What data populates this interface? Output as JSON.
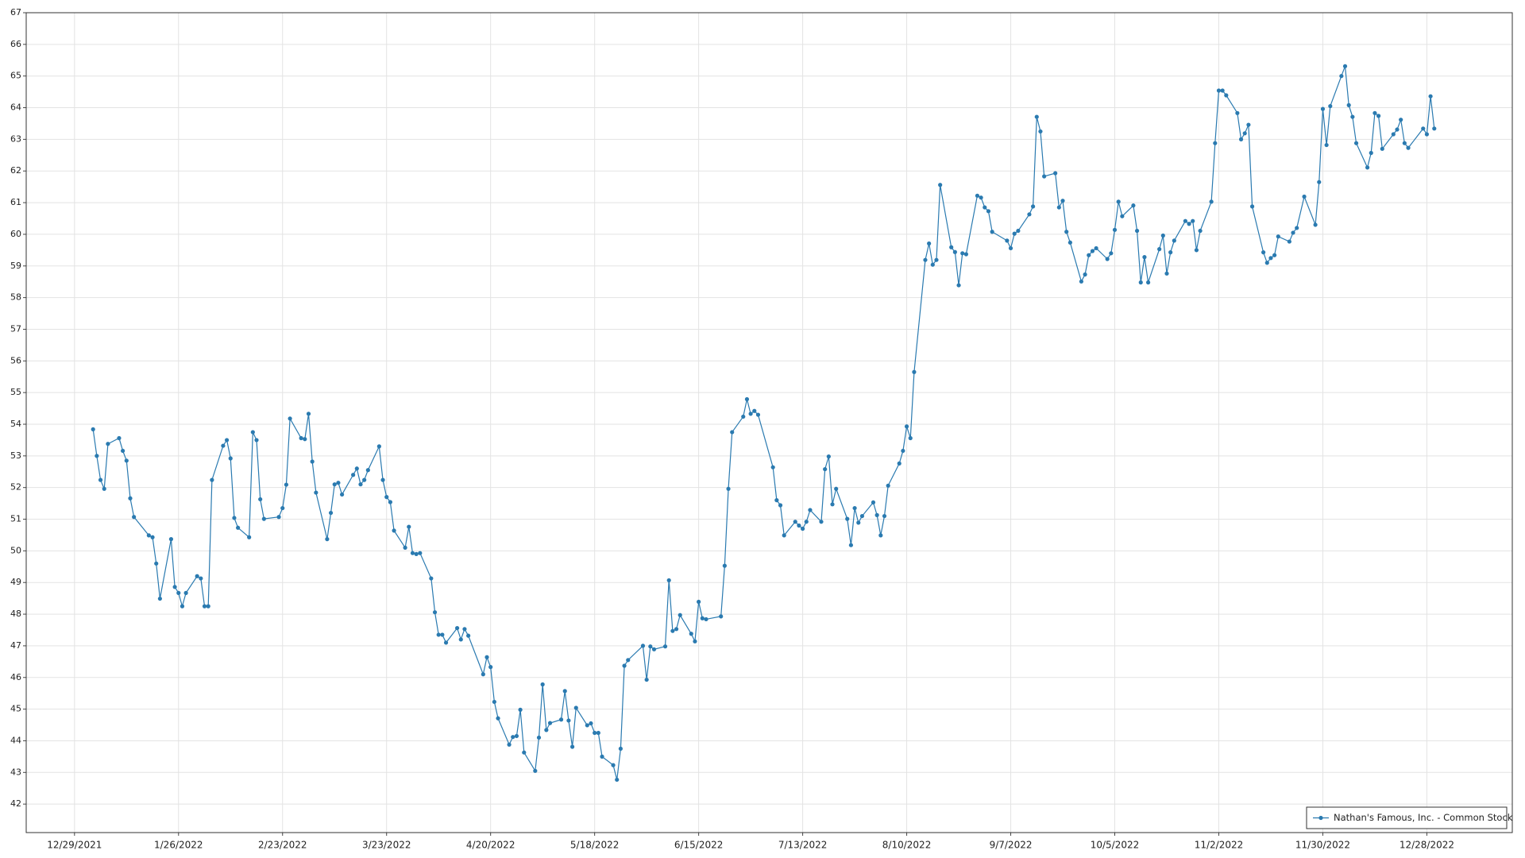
{
  "chart_data": {
    "type": "line",
    "x": [
      "1/3/2022",
      "1/4/2022",
      "1/5/2022",
      "1/6/2022",
      "1/7/2022",
      "1/10/2022",
      "1/11/2022",
      "1/12/2022",
      "1/13/2022",
      "1/14/2022",
      "1/18/2022",
      "1/19/2022",
      "1/20/2022",
      "1/21/2022",
      "1/24/2022",
      "1/25/2022",
      "1/26/2022",
      "1/27/2022",
      "1/28/2022",
      "1/31/2022",
      "2/1/2022",
      "2/2/2022",
      "2/3/2022",
      "2/4/2022",
      "2/7/2022",
      "2/8/2022",
      "2/9/2022",
      "2/10/2022",
      "2/11/2022",
      "2/14/2022",
      "2/15/2022",
      "2/16/2022",
      "2/17/2022",
      "2/18/2022",
      "2/22/2022",
      "2/23/2022",
      "2/24/2022",
      "2/25/2022",
      "2/28/2022",
      "3/1/2022",
      "3/2/2022",
      "3/3/2022",
      "3/4/2022",
      "3/7/2022",
      "3/8/2022",
      "3/9/2022",
      "3/10/2022",
      "3/11/2022",
      "3/14/2022",
      "3/15/2022",
      "3/16/2022",
      "3/17/2022",
      "3/18/2022",
      "3/21/2022",
      "3/22/2022",
      "3/23/2022",
      "3/24/2022",
      "3/25/2022",
      "3/28/2022",
      "3/29/2022",
      "3/30/2022",
      "3/31/2022",
      "4/1/2022",
      "4/4/2022",
      "4/5/2022",
      "4/6/2022",
      "4/7/2022",
      "4/8/2022",
      "4/11/2022",
      "4/12/2022",
      "4/13/2022",
      "4/14/2022",
      "4/18/2022",
      "4/19/2022",
      "4/20/2022",
      "4/21/2022",
      "4/22/2022",
      "4/25/2022",
      "4/26/2022",
      "4/27/2022",
      "4/28/2022",
      "4/29/2022",
      "5/2/2022",
      "5/3/2022",
      "5/4/2022",
      "5/5/2022",
      "5/6/2022",
      "5/9/2022",
      "5/10/2022",
      "5/11/2022",
      "5/12/2022",
      "5/13/2022",
      "5/16/2022",
      "5/17/2022",
      "5/18/2022",
      "5/19/2022",
      "5/20/2022",
      "5/23/2022",
      "5/24/2022",
      "5/25/2022",
      "5/26/2022",
      "5/27/2022",
      "5/31/2022",
      "6/1/2022",
      "6/2/2022",
      "6/3/2022",
      "6/6/2022",
      "6/7/2022",
      "6/8/2022",
      "6/9/2022",
      "6/10/2022",
      "6/13/2022",
      "6/14/2022",
      "6/15/2022",
      "6/16/2022",
      "6/17/2022",
      "6/21/2022",
      "6/22/2022",
      "6/23/2022",
      "6/24/2022",
      "6/27/2022",
      "6/28/2022",
      "6/29/2022",
      "6/30/2022",
      "7/1/2022",
      "7/5/2022",
      "7/6/2022",
      "7/7/2022",
      "7/8/2022",
      "7/11/2022",
      "7/12/2022",
      "7/13/2022",
      "7/14/2022",
      "7/15/2022",
      "7/18/2022",
      "7/19/2022",
      "7/20/2022",
      "7/21/2022",
      "7/22/2022",
      "7/25/2022",
      "7/26/2022",
      "7/27/2022",
      "7/28/2022",
      "7/29/2022",
      "8/1/2022",
      "8/2/2022",
      "8/3/2022",
      "8/4/2022",
      "8/5/2022",
      "8/8/2022",
      "8/9/2022",
      "8/10/2022",
      "8/11/2022",
      "8/12/2022",
      "8/15/2022",
      "8/16/2022",
      "8/17/2022",
      "8/18/2022",
      "8/19/2022",
      "8/22/2022",
      "8/23/2022",
      "8/24/2022",
      "8/25/2022",
      "8/26/2022",
      "8/29/2022",
      "8/30/2022",
      "8/31/2022",
      "9/1/2022",
      "9/2/2022",
      "9/6/2022",
      "9/7/2022",
      "9/8/2022",
      "9/9/2022",
      "9/12/2022",
      "9/13/2022",
      "9/14/2022",
      "9/15/2022",
      "9/16/2022",
      "9/19/2022",
      "9/20/2022",
      "9/21/2022",
      "9/22/2022",
      "9/23/2022",
      "9/26/2022",
      "9/27/2022",
      "9/28/2022",
      "9/29/2022",
      "9/30/2022",
      "10/3/2022",
      "10/4/2022",
      "10/5/2022",
      "10/6/2022",
      "10/7/2022",
      "10/10/2022",
      "10/11/2022",
      "10/12/2022",
      "10/13/2022",
      "10/14/2022",
      "10/17/2022",
      "10/18/2022",
      "10/19/2022",
      "10/20/2022",
      "10/21/2022",
      "10/24/2022",
      "10/25/2022",
      "10/26/2022",
      "10/27/2022",
      "10/28/2022",
      "10/31/2022",
      "11/1/2022",
      "11/2/2022",
      "11/3/2022",
      "11/4/2022",
      "11/7/2022",
      "11/8/2022",
      "11/9/2022",
      "11/10/2022",
      "11/11/2022",
      "11/14/2022",
      "11/15/2022",
      "11/16/2022",
      "11/17/2022",
      "11/18/2022",
      "11/21/2022",
      "11/22/2022",
      "11/23/2022",
      "11/25/2022",
      "11/28/2022",
      "11/29/2022",
      "11/30/2022",
      "12/1/2022",
      "12/2/2022",
      "12/5/2022",
      "12/6/2022",
      "12/7/2022",
      "12/8/2022",
      "12/9/2022",
      "12/12/2022",
      "12/13/2022",
      "12/14/2022",
      "12/15/2022",
      "12/16/2022",
      "12/19/2022",
      "12/20/2022",
      "12/21/2022",
      "12/22/2022",
      "12/23/2022",
      "12/27/2022",
      "12/28/2022",
      "12/29/2022",
      "12/30/2022"
    ],
    "series": [
      {
        "name": "Nathan's Famous, Inc. - Common Stock",
        "color": "#2a7ab0",
        "values": [
          53.84,
          53.0,
          52.24,
          51.96,
          53.38,
          53.56,
          53.16,
          52.85,
          51.66,
          51.07,
          50.49,
          50.43,
          49.6,
          48.49,
          50.37,
          48.86,
          48.67,
          48.25,
          48.67,
          49.2,
          49.13,
          48.25,
          48.25,
          52.24,
          53.32,
          53.5,
          52.92,
          51.04,
          50.73,
          50.43,
          53.75,
          53.5,
          51.63,
          51.01,
          51.07,
          51.35,
          52.09,
          54.18,
          53.56,
          53.53,
          54.33,
          52.82,
          51.84,
          50.37,
          51.2,
          52.1,
          52.15,
          51.78,
          52.4,
          52.6,
          52.1,
          52.24,
          52.55,
          53.3,
          52.24,
          51.7,
          51.54,
          50.64,
          50.1,
          50.76,
          49.93,
          49.9,
          49.93,
          49.13,
          48.06,
          47.35,
          47.35,
          47.1,
          47.56,
          47.2,
          47.53,
          47.32,
          46.1,
          46.64,
          46.33,
          45.23,
          44.71,
          43.88,
          44.12,
          44.15,
          44.98,
          43.63,
          43.05,
          44.1,
          45.78,
          44.34,
          44.56,
          44.67,
          45.57,
          44.64,
          43.81,
          45.04,
          44.49,
          44.55,
          44.25,
          44.25,
          43.5,
          43.23,
          42.77,
          43.75,
          46.37,
          46.55,
          47.0,
          45.93,
          46.98,
          46.89,
          46.98,
          49.07,
          47.47,
          47.53,
          47.97,
          47.38,
          47.14,
          48.39,
          47.87,
          47.84,
          47.93,
          49.53,
          51.96,
          53.75,
          54.24,
          54.79,
          54.33,
          54.42,
          54.3,
          52.64,
          51.6,
          51.44,
          50.49,
          50.92,
          50.8,
          50.7,
          50.92,
          51.29,
          50.92,
          52.58,
          52.98,
          51.47,
          51.96,
          51.01,
          50.18,
          51.35,
          50.89,
          51.1,
          51.53,
          51.13,
          50.49,
          51.1,
          52.06,
          52.76,
          53.16,
          53.93,
          53.56,
          55.65,
          59.19,
          59.71,
          59.04,
          59.19,
          61.56,
          59.59,
          59.44,
          58.39,
          59.4,
          59.37,
          61.22,
          61.16,
          60.85,
          60.73,
          60.08,
          59.8,
          59.56,
          60.02,
          60.11,
          60.63,
          60.88,
          63.71,
          63.25,
          61.83,
          61.93,
          60.85,
          61.06,
          60.08,
          59.74,
          58.51,
          58.73,
          59.34,
          59.47,
          59.56,
          59.22,
          59.4,
          60.14,
          61.03,
          60.57,
          60.91,
          60.11,
          58.48,
          59.28,
          58.48,
          59.53,
          59.96,
          58.76,
          59.43,
          59.8,
          60.42,
          60.33,
          60.42,
          59.5,
          60.11,
          61.03,
          62.88,
          64.54,
          64.54,
          64.39,
          63.83,
          63.0,
          63.19,
          63.46,
          60.88,
          59.43,
          59.1,
          59.25,
          59.34,
          59.93,
          59.77,
          60.05,
          60.2,
          61.19,
          60.3,
          61.65,
          63.96,
          62.82,
          64.05,
          65.0,
          65.31,
          64.08,
          63.71,
          62.88,
          62.11,
          62.57,
          63.83,
          63.74,
          62.7,
          63.16,
          63.31,
          63.62,
          62.88,
          62.73,
          63.34,
          63.16,
          64.36,
          63.34
        ]
      }
    ],
    "xlim": [
      "12/16/2021",
      "1/20/2023"
    ],
    "xticks": [
      "12/29/2021",
      "1/26/2022",
      "2/23/2022",
      "3/23/2022",
      "4/20/2022",
      "5/18/2022",
      "6/15/2022",
      "7/13/2022",
      "8/10/2022",
      "9/7/2022",
      "10/5/2022",
      "11/2/2022",
      "11/30/2022",
      "12/28/2022"
    ],
    "ylim": [
      41.1,
      67
    ],
    "yticks": [
      42,
      43,
      44,
      45,
      46,
      47,
      48,
      49,
      50,
      51,
      52,
      53,
      54,
      55,
      56,
      57,
      58,
      59,
      60,
      61,
      62,
      63,
      64,
      65,
      66,
      67
    ],
    "grid": true,
    "legend": "lower right"
  }
}
